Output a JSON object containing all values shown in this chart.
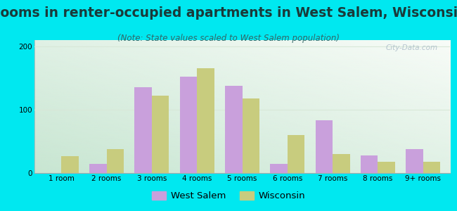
{
  "categories": [
    "1 room",
    "2 rooms",
    "3 rooms",
    "4 rooms",
    "5 rooms",
    "6 rooms",
    "7 rooms",
    "8 rooms",
    "9+ rooms"
  ],
  "west_salem": [
    0,
    15,
    135,
    152,
    138,
    14,
    83,
    28,
    38
  ],
  "wisconsin": [
    27,
    38,
    122,
    165,
    118,
    60,
    30,
    18,
    18
  ],
  "west_salem_color": "#c9a0dc",
  "wisconsin_color": "#c8cc7e",
  "title": "Rooms in renter-occupied apartments in West Salem, Wisconsin",
  "subtitle": "(Note: State values scaled to West Salem population)",
  "ylim": [
    0,
    210
  ],
  "yticks": [
    0,
    100,
    200
  ],
  "bg_outer": "#00e8f0",
  "bar_width": 0.38,
  "title_fontsize": 13.5,
  "subtitle_fontsize": 8.5,
  "tick_fontsize": 7.5,
  "legend_fontsize": 9.5,
  "watermark_text": "City-Data.com",
  "watermark_color": "#aabbc8",
  "grid_color": "#d8e8d8",
  "chart_bg_topleft": "#d8eedd",
  "chart_bg_topright": "#eef5f0",
  "chart_bg_bottomleft": "#c8e8cc",
  "chart_bg_bottomright": "#f0f8f0"
}
